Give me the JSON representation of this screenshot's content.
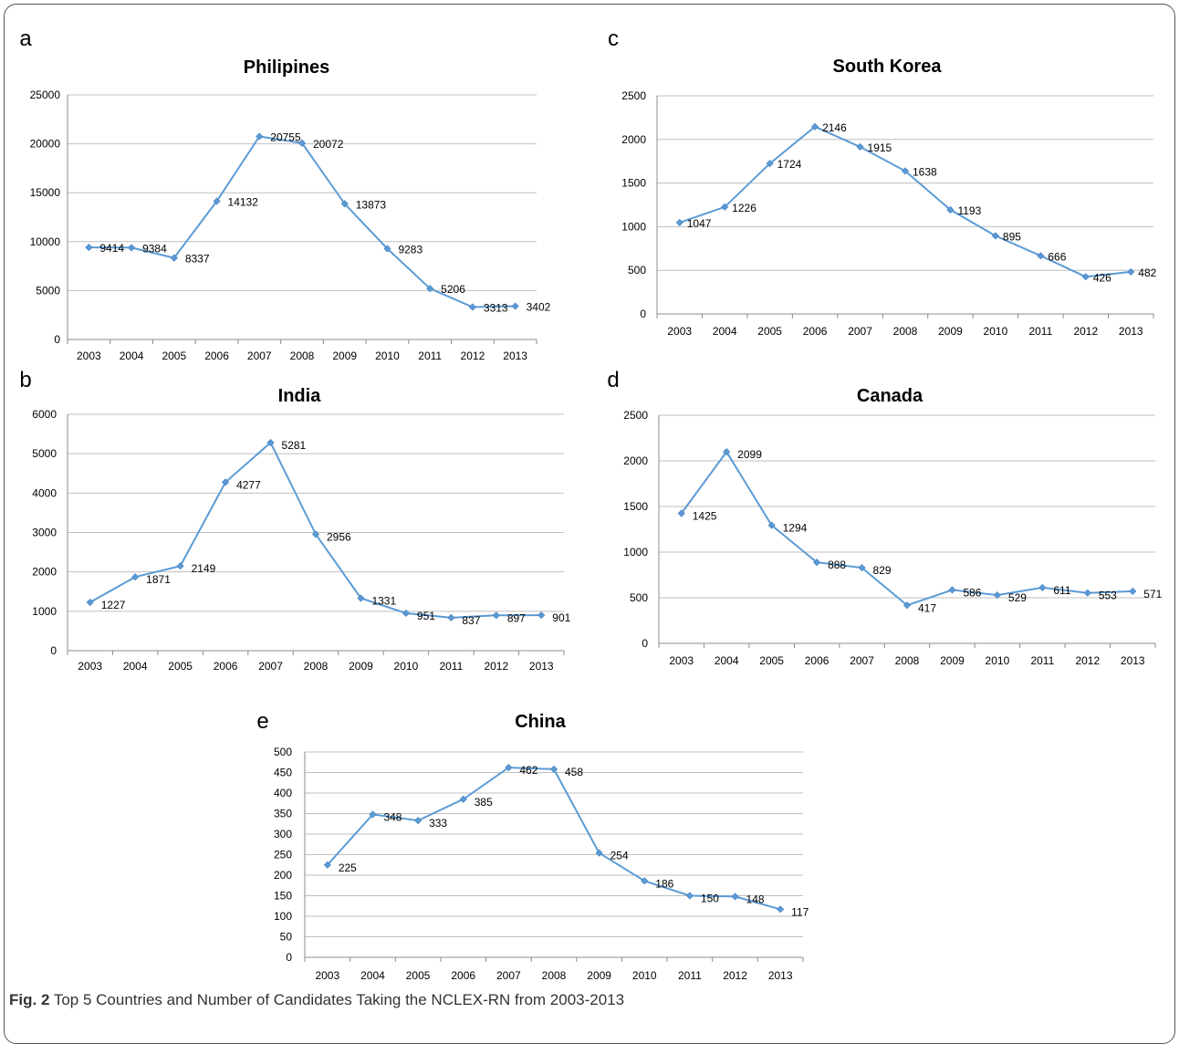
{
  "chart_data": [
    {
      "panel": "a",
      "type": "line",
      "title": "Philipines",
      "categories": [
        "2003",
        "2004",
        "2005",
        "2006",
        "2007",
        "2008",
        "2009",
        "2010",
        "2011",
        "2012",
        "2013"
      ],
      "values": [
        9414,
        9384,
        8337,
        14132,
        20755,
        20072,
        13873,
        9283,
        5206,
        3313,
        3402
      ],
      "ylim": [
        0,
        25000
      ],
      "yticks": [
        0,
        5000,
        10000,
        15000,
        20000,
        25000
      ],
      "grid": true,
      "color": "#5b9bd5"
    },
    {
      "panel": "b",
      "type": "line",
      "title": "India",
      "categories": [
        "2003",
        "2004",
        "2005",
        "2006",
        "2007",
        "2008",
        "2009",
        "2010",
        "2011",
        "2012",
        "2013"
      ],
      "values": [
        1227,
        1871,
        2149,
        4277,
        5281,
        2956,
        1331,
        951,
        837,
        897,
        901
      ],
      "ylim": [
        0,
        6000
      ],
      "yticks": [
        0,
        1000,
        2000,
        3000,
        4000,
        5000,
        6000
      ],
      "grid": true,
      "color": "#5b9bd5"
    },
    {
      "panel": "c",
      "type": "line",
      "title": "South Korea",
      "categories": [
        "2003",
        "2004",
        "2005",
        "2006",
        "2007",
        "2008",
        "2009",
        "2010",
        "2011",
        "2012",
        "2013"
      ],
      "values": [
        1047,
        1226,
        1724,
        2146,
        1915,
        1638,
        1193,
        895,
        666,
        426,
        482
      ],
      "ylim": [
        0,
        2500
      ],
      "yticks": [
        0,
        500,
        1000,
        1500,
        2000,
        2500
      ],
      "grid": true,
      "color": "#5b9bd5"
    },
    {
      "panel": "d",
      "type": "line",
      "title": "Canada",
      "categories": [
        "2003",
        "2004",
        "2005",
        "2006",
        "2007",
        "2008",
        "2009",
        "2010",
        "2011",
        "2012",
        "2013"
      ],
      "values": [
        1425,
        2099,
        1294,
        888,
        829,
        417,
        586,
        529,
        611,
        553,
        571
      ],
      "ylim": [
        0,
        2500
      ],
      "yticks": [
        0,
        500,
        1000,
        1500,
        2000,
        2500
      ],
      "grid": true,
      "color": "#5b9bd5"
    },
    {
      "panel": "e",
      "type": "line",
      "title": "China",
      "categories": [
        "2003",
        "2004",
        "2005",
        "2006",
        "2007",
        "2008",
        "2009",
        "2010",
        "2011",
        "2012",
        "2013"
      ],
      "values": [
        225,
        348,
        333,
        385,
        462,
        458,
        254,
        186,
        150,
        148,
        117
      ],
      "ylim": [
        0,
        500
      ],
      "yticks": [
        0,
        50,
        100,
        150,
        200,
        250,
        300,
        350,
        400,
        450,
        500
      ],
      "grid": true,
      "color": "#5b9bd5"
    }
  ],
  "caption": {
    "label": "Fig. 2",
    "text": "Top 5 Countries and Number of Candidates Taking the NCLEX-RN from 2003-2013"
  }
}
